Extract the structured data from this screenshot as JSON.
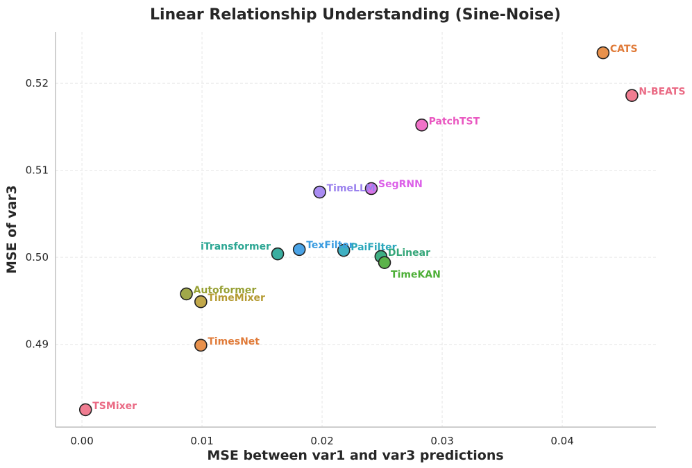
{
  "chart_data": {
    "type": "scatter",
    "title": "Linear Relationship Understanding (Sine-Noise)",
    "xlabel": "MSE between var1 and var3 predictions",
    "ylabel": "MSE of var3",
    "xlim": [
      -0.0022,
      0.0478
    ],
    "ylim": [
      0.4805,
      0.5259
    ],
    "xticks": [
      0.0,
      0.01,
      0.02,
      0.03,
      0.04
    ],
    "xtick_labels": [
      "0.00",
      "0.01",
      "0.02",
      "0.03",
      "0.04"
    ],
    "yticks": [
      0.49,
      0.5,
      0.51,
      0.52
    ],
    "ytick_labels": [
      "0.49",
      "0.50",
      "0.51",
      "0.52"
    ],
    "grid": true,
    "points": [
      {
        "label": "CATS",
        "x": 0.0434,
        "y": 0.5235,
        "color": "#e8914c",
        "label_color": "#e07b39"
      },
      {
        "label": "N-BEATS",
        "x": 0.0458,
        "y": 0.5186,
        "color": "#f07d91",
        "label_color": "#ea6a84"
      },
      {
        "label": "PatchTST",
        "x": 0.0283,
        "y": 0.5152,
        "color": "#f072c8",
        "label_color": "#e956c0"
      },
      {
        "label": "TimeLLM",
        "x": 0.0198,
        "y": 0.5075,
        "color": "#a98cf2",
        "label_color": "#9b82ee"
      },
      {
        "label": "SegRNN",
        "x": 0.0241,
        "y": 0.5079,
        "color": "#d975e8",
        "label_color": "#dc5fe8"
      },
      {
        "label": "iTransformer",
        "x": 0.0163,
        "y": 0.5004,
        "color": "#3aaea0",
        "label_color": "#2ca693"
      },
      {
        "label": "TexFilter",
        "x": 0.0181,
        "y": 0.5009,
        "color": "#4aa3e6",
        "label_color": "#3a9ce0"
      },
      {
        "label": "PaiFilter",
        "x": 0.0218,
        "y": 0.5008,
        "color": "#3fb0c2",
        "label_color": "#2ba7bb"
      },
      {
        "label": "DLinear",
        "x": 0.0249,
        "y": 0.5001,
        "color": "#3fae82",
        "label_color": "#35a679"
      },
      {
        "label": "TimeKAN",
        "x": 0.0252,
        "y": 0.4994,
        "color": "#5cb34a",
        "label_color": "#4daf37"
      },
      {
        "label": "Autoformer",
        "x": 0.0087,
        "y": 0.4958,
        "color": "#a0a84a",
        "label_color": "#97a034"
      },
      {
        "label": "TimeMixer",
        "x": 0.0099,
        "y": 0.4949,
        "color": "#c2a84a",
        "label_color": "#b59b33"
      },
      {
        "label": "TimesNet",
        "x": 0.0099,
        "y": 0.4899,
        "color": "#e8914c",
        "label_color": "#e07b39"
      },
      {
        "label": "TSMixer",
        "x": 0.0003,
        "y": 0.4825,
        "color": "#f07d91",
        "label_color": "#ea6a84"
      }
    ]
  }
}
